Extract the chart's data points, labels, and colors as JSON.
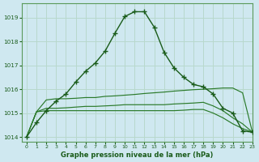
{
  "title": "Graphe pression niveau de la mer (hPa)",
  "background_color": "#cfe8f0",
  "plot_bg_color": "#cfe8f0",
  "grid_color": "#b8d8cc",
  "line_color_main": "#1a5c1a",
  "line_color_secondary": "#2a7a2a",
  "xlim": [
    -0.5,
    23
  ],
  "ylim": [
    1013.8,
    1019.6
  ],
  "yticks": [
    1014,
    1015,
    1016,
    1017,
    1018,
    1019
  ],
  "xticks": [
    0,
    1,
    2,
    3,
    4,
    5,
    6,
    7,
    8,
    9,
    10,
    11,
    12,
    13,
    14,
    15,
    16,
    17,
    18,
    19,
    20,
    21,
    22,
    23
  ],
  "series_main": [
    1014.0,
    1014.6,
    1015.1,
    1015.5,
    1015.8,
    1016.3,
    1016.75,
    1017.1,
    1017.6,
    1018.35,
    1019.05,
    1019.25,
    1019.25,
    1018.6,
    1017.55,
    1016.9,
    1016.5,
    1016.2,
    1016.1,
    1015.8,
    1015.2,
    1015.0,
    1014.25,
    1014.2
  ],
  "series_max": [
    1014.0,
    1015.05,
    1015.55,
    1015.6,
    1015.6,
    1015.62,
    1015.65,
    1015.65,
    1015.7,
    1015.72,
    1015.75,
    1015.78,
    1015.82,
    1015.85,
    1015.88,
    1015.92,
    1015.95,
    1015.98,
    1016.0,
    1016.02,
    1016.05,
    1016.05,
    1015.85,
    1014.2
  ],
  "series_mid": [
    1014.0,
    1015.05,
    1015.2,
    1015.2,
    1015.22,
    1015.25,
    1015.28,
    1015.28,
    1015.3,
    1015.32,
    1015.35,
    1015.35,
    1015.35,
    1015.35,
    1015.35,
    1015.38,
    1015.4,
    1015.42,
    1015.45,
    1015.3,
    1015.1,
    1014.8,
    1014.55,
    1014.2
  ],
  "series_min": [
    1014.0,
    1015.05,
    1015.1,
    1015.1,
    1015.1,
    1015.1,
    1015.1,
    1015.1,
    1015.1,
    1015.1,
    1015.1,
    1015.1,
    1015.1,
    1015.1,
    1015.1,
    1015.1,
    1015.12,
    1015.15,
    1015.15,
    1015.0,
    1014.8,
    1014.55,
    1014.35,
    1014.2
  ]
}
